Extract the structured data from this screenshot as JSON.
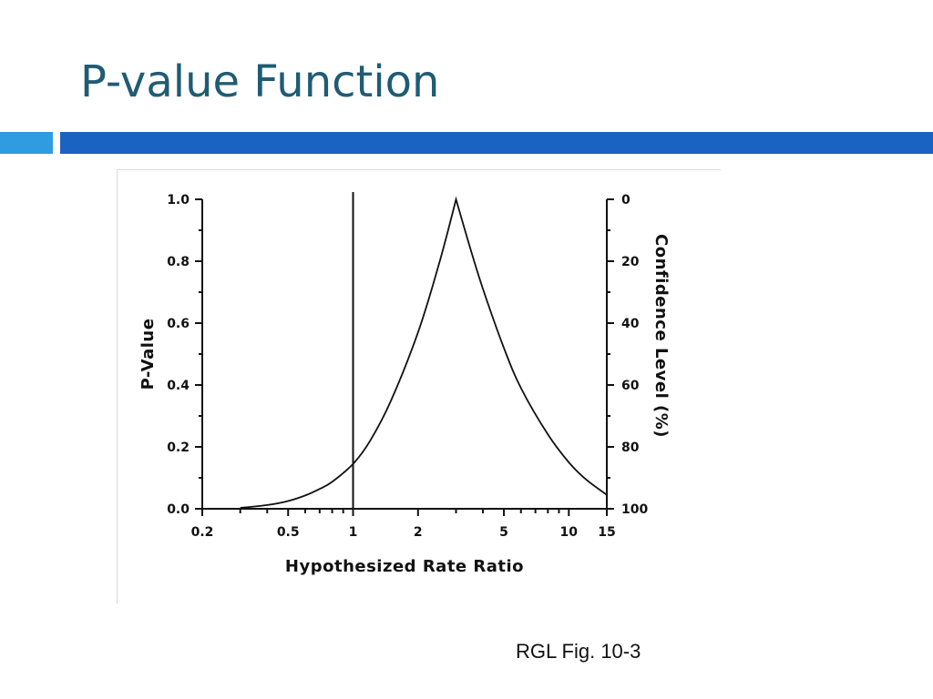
{
  "slide": {
    "title": "P-value Function",
    "caption": "RGL Fig. 10-3",
    "colors": {
      "title": "#1f5c73",
      "bar_light": "#2f9be0",
      "bar_dark": "#1b63c0",
      "curve": "#111111"
    }
  },
  "chart_data": {
    "type": "line",
    "xlabel": "Hypothesized Rate Ratio",
    "ylabel": "P-Value",
    "y2label": "Confidence Level (%)",
    "x_scale": "log",
    "xlim": [
      0.2,
      15
    ],
    "ylim": [
      0,
      1
    ],
    "y2lim": [
      100,
      0
    ],
    "x_ticks": [
      0.2,
      0.5,
      1,
      2,
      5,
      10,
      15
    ],
    "x_tick_labels": [
      "0.2",
      "0.5",
      "1",
      "2",
      "5",
      "10",
      "15"
    ],
    "y_ticks": [
      0,
      0.2,
      0.4,
      0.6,
      0.8,
      1.0
    ],
    "y_tick_labels": [
      "0.0",
      "0.2",
      "0.4",
      "0.6",
      "0.8",
      "1.0"
    ],
    "y2_ticks": [
      0,
      20,
      40,
      60,
      80,
      100
    ],
    "y2_tick_labels": [
      "0",
      "20",
      "40",
      "60",
      "80",
      "100"
    ],
    "reference_line_x": 1,
    "grid": false,
    "series": [
      {
        "x": [
          0.3,
          0.4,
          0.5,
          0.6,
          0.7,
          0.8,
          1.0,
          1.2,
          1.5,
          2.0,
          2.5,
          3.0,
          3.5,
          4.0,
          5.0,
          6.0,
          8.0,
          10.0,
          12.0,
          15.0
        ],
        "y": [
          0.003,
          0.012,
          0.025,
          0.043,
          0.064,
          0.087,
          0.145,
          0.22,
          0.35,
          0.57,
          0.79,
          1.0,
          0.84,
          0.71,
          0.52,
          0.39,
          0.24,
          0.15,
          0.095,
          0.045
        ]
      }
    ]
  }
}
